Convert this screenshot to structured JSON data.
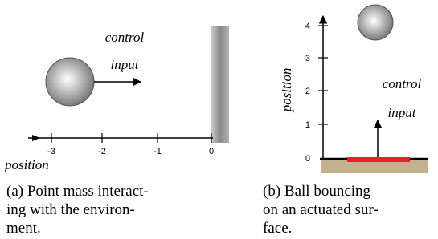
{
  "panel_a": {
    "annotation_top": "control",
    "annotation_bottom": "input",
    "ticks": [
      "-3",
      "-2",
      "-1",
      "0"
    ],
    "axis_label": "position",
    "caption": [
      "(a) Point mass interact-",
      "ing with the environ-",
      "ment."
    ]
  },
  "panel_b": {
    "annotation_top": "control",
    "annotation_bottom": "input",
    "ticks": [
      "0",
      "1",
      "2",
      "3",
      "4"
    ],
    "axis_label": "position",
    "caption": [
      "(b) Ball bouncing",
      "on an actuated sur-",
      "face."
    ]
  }
}
